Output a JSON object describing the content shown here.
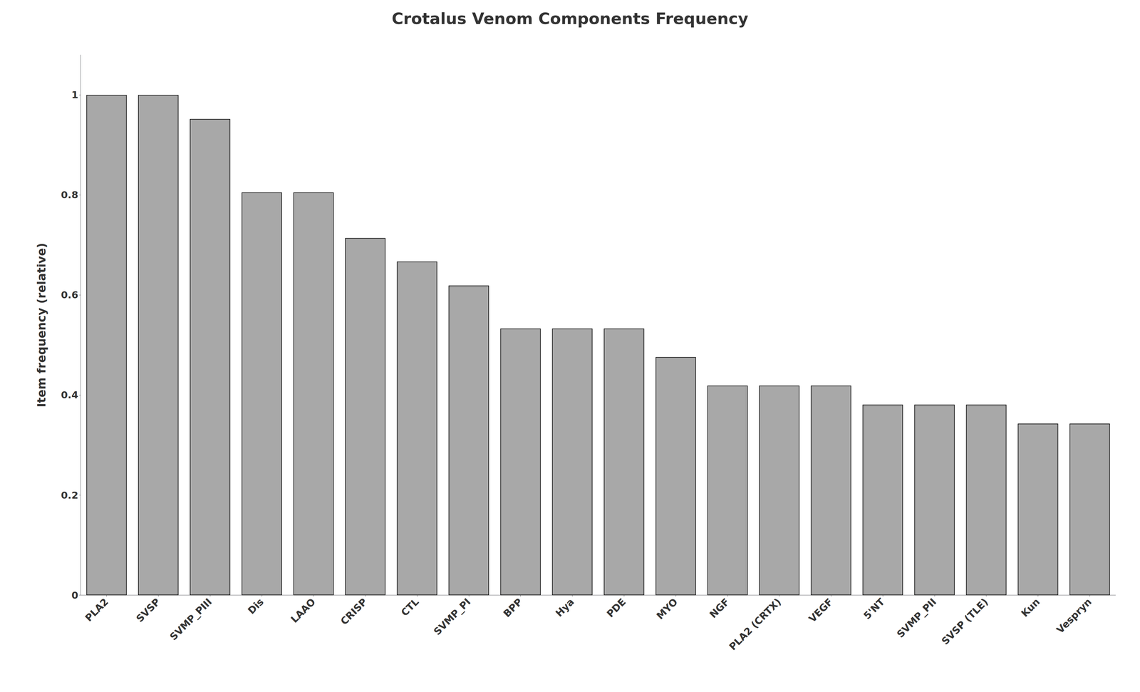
{
  "chart_data": {
    "type": "bar",
    "title": "Crotalus Venom Components Frequency",
    "categories": [
      "PLA2",
      "SVSP",
      "SVMP_PIII",
      "Dis",
      "LAAO",
      "CRISP",
      "CTL",
      "SVMP_PI",
      "BPP",
      "Hya",
      "PDE",
      "MYO",
      "NGF",
      "PLA2 (CRTX)",
      "VEGF",
      "5'NT",
      "SVMP_PII",
      "SVSP (TLE)",
      "Kun",
      "Vespryn"
    ],
    "values": [
      1.0,
      1.0,
      0.952,
      0.805,
      0.805,
      0.714,
      0.667,
      0.619,
      0.533,
      0.533,
      0.533,
      0.476,
      0.419,
      0.419,
      0.419,
      0.381,
      0.381,
      0.381,
      0.343,
      0.343
    ],
    "color": "#a8a8a8",
    "ylabel": "Item frequency (relative)",
    "ylim": [
      0,
      1.08
    ],
    "yticks": [
      0,
      0.2,
      0.4,
      0.6,
      0.8,
      1.0
    ],
    "grid": false
  }
}
